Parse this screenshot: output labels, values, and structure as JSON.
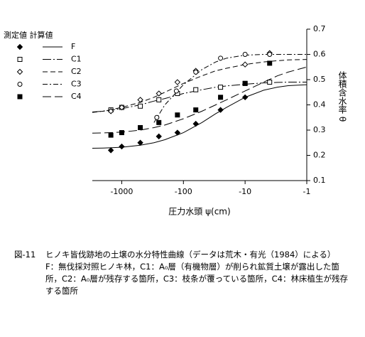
{
  "chart_data": {
    "type": "scatter",
    "xscale": "log",
    "color": "#000000",
    "xlabel": "圧力水頭 ψ(cm)",
    "ylabel": "体積含水率 θ",
    "legend_header": "測定値 計算値",
    "legend": "upper left",
    "xlim": [
      -3000,
      -1
    ],
    "xticks": [
      -1000,
      -100,
      -10,
      -1
    ],
    "ylim": [
      0.1,
      0.7
    ],
    "yticks": [
      0.1,
      0.2,
      0.3,
      0.4,
      0.5,
      0.6,
      0.7
    ],
    "curve_x": [
      -3000,
      -2000,
      -1000,
      -500,
      -300,
      -200,
      -100,
      -50,
      -30,
      -20,
      -10,
      -5,
      -3,
      -2,
      -1
    ],
    "series": [
      {
        "name": "F",
        "marker": "diamond-filled",
        "dash": "solid",
        "x": [
          -1500,
          -1000,
          -500,
          -250,
          -125,
          -63,
          -25,
          -10
        ],
        "values": [
          0.22,
          0.235,
          0.25,
          0.275,
          0.29,
          0.325,
          0.38,
          0.43
        ],
        "curve": [
          0.228,
          0.229,
          0.232,
          0.24,
          0.25,
          0.262,
          0.29,
          0.33,
          0.365,
          0.39,
          0.43,
          0.458,
          0.47,
          0.476,
          0.48
        ]
      },
      {
        "name": "C1",
        "marker": "square-open",
        "dash": "longdashdot",
        "x": [
          -1500,
          -1000,
          -500,
          -250,
          -125,
          -63,
          -25,
          -10,
          -4
        ],
        "values": [
          0.38,
          0.39,
          0.395,
          0.42,
          0.445,
          0.46,
          0.47,
          0.485,
          0.49
        ],
        "curve": [
          0.372,
          0.375,
          0.385,
          0.4,
          0.415,
          0.425,
          0.445,
          0.46,
          0.47,
          0.475,
          0.482,
          0.487,
          0.489,
          0.49,
          0.49
        ]
      },
      {
        "name": "C2",
        "marker": "diamond-open",
        "dash": "dash",
        "x": [
          -1500,
          -1000,
          -500,
          -250,
          -125,
          -63,
          -10,
          -4
        ],
        "values": [
          0.375,
          0.39,
          0.42,
          0.445,
          0.49,
          0.535,
          0.56,
          0.605
        ],
        "curve": [
          0.37,
          0.375,
          0.39,
          0.41,
          0.43,
          0.45,
          0.485,
          0.515,
          0.535,
          0.545,
          0.56,
          0.57,
          0.575,
          0.578,
          0.58
        ]
      },
      {
        "name": "C3",
        "marker": "circle-open",
        "dash": "dashdot",
        "x": [
          -270,
          -130,
          -63,
          -25,
          -10,
          -4
        ],
        "values": [
          0.35,
          0.455,
          0.53,
          0.585,
          0.6,
          0.6
        ],
        "curve": [
          null,
          null,
          null,
          null,
          0.33,
          0.4,
          0.48,
          0.54,
          0.57,
          0.585,
          0.597,
          0.6,
          0.6,
          0.6,
          0.6
        ]
      },
      {
        "name": "C4",
        "marker": "square-filled",
        "dash": "longdash",
        "x": [
          -1500,
          -1000,
          -500,
          -250,
          -125,
          -63,
          -25,
          -10,
          -4
        ],
        "values": [
          0.28,
          0.29,
          0.31,
          0.33,
          0.36,
          0.38,
          0.43,
          0.485,
          0.565
        ],
        "curve": [
          0.288,
          0.289,
          0.292,
          0.3,
          0.31,
          0.32,
          0.345,
          0.375,
          0.4,
          0.42,
          0.455,
          0.49,
          0.515,
          0.53,
          0.55
        ]
      }
    ]
  },
  "caption": {
    "label": "図-11",
    "title": "ヒノキ皆伐跡地の土壌の水分特性曲線（データは荒木・有光（1984）による）",
    "notes": "F：無伐採対照ヒノキ林，C1：A₀層（有機物層）が削られ鉱質土壌が露出した箇所，C2：A₀層が残存する箇所，C3：枝条が覆っている箇所，C4：林床植生が残存する箇所"
  }
}
